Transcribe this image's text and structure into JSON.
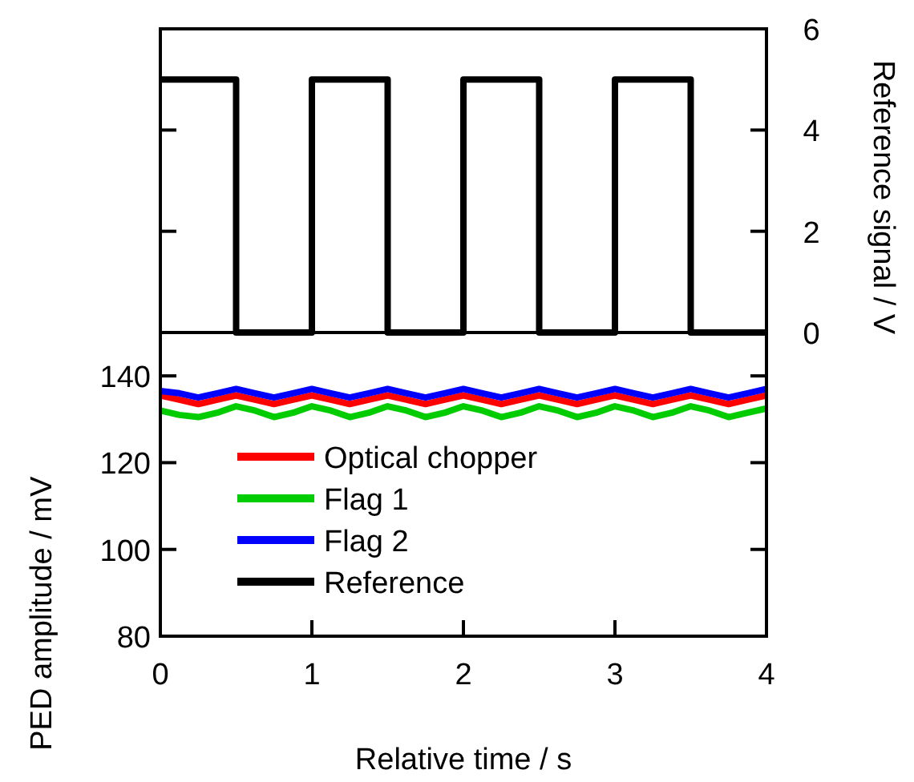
{
  "chart_data": {
    "type": "line",
    "xlabel": "Relative time / s",
    "ylabel": "PED amplitude / mV",
    "y2label": "Reference signal / V",
    "x": [
      0,
      0.125,
      0.25,
      0.375,
      0.5,
      0.625,
      0.75,
      0.875,
      1,
      1.125,
      1.25,
      1.375,
      1.5,
      1.625,
      1.75,
      1.875,
      2,
      2.125,
      2.25,
      2.375,
      2.5,
      2.625,
      2.75,
      2.875,
      3,
      3.125,
      3.25,
      3.375,
      3.5,
      3.625,
      3.75,
      3.875,
      4
    ],
    "xlim": [
      0,
      4
    ],
    "xticks": [
      0,
      1,
      2,
      3,
      4
    ],
    "ylim": [
      80,
      220
    ],
    "yticks": [
      80,
      100,
      120,
      140
    ],
    "y2lim": [
      -6,
      6
    ],
    "y2ticks": [
      0,
      2,
      4,
      6
    ],
    "legend": "bottom left",
    "grid": false,
    "ref_lines": [
      {
        "axis": "y2",
        "value": 0,
        "color": "#000000"
      }
    ],
    "series": [
      {
        "name": "Optical chopper",
        "color": "#ff0000",
        "values": [
          135.5,
          134.5,
          133.5,
          134.5,
          135.5,
          134.5,
          133.5,
          134.5,
          135.5,
          134.5,
          133.5,
          134.5,
          135.5,
          134.5,
          133.5,
          134.5,
          135.5,
          134.5,
          133.5,
          134.5,
          135.5,
          134.5,
          133.5,
          134.5,
          135.5,
          134.5,
          133.5,
          134.5,
          135.5,
          134.5,
          133.5,
          134.5,
          135.5
        ]
      },
      {
        "name": "Flag 1",
        "color": "#00cc00",
        "values": [
          132,
          131,
          130.5,
          131.5,
          133,
          132,
          130.5,
          131.5,
          133,
          132,
          130.5,
          131.5,
          133,
          132,
          130.5,
          131.5,
          133,
          132,
          130.5,
          131.5,
          133,
          132,
          130.5,
          131.5,
          133,
          132,
          130.5,
          131.5,
          133,
          132,
          130.5,
          131.5,
          132.5
        ]
      },
      {
        "name": "Flag 2",
        "color": "#0000ff",
        "values": [
          136.5,
          136,
          135,
          136,
          137,
          136,
          135,
          136,
          137,
          136,
          135,
          136,
          137,
          136,
          135,
          136,
          137,
          136,
          135,
          136,
          137,
          136,
          135,
          136,
          137,
          136,
          135,
          136,
          137,
          136,
          135,
          136,
          137
        ]
      },
      {
        "name": "Reference",
        "color": "#000000",
        "axis": "y2",
        "x": [
          0,
          0.5,
          0.5,
          1,
          1,
          1.5,
          1.5,
          2,
          2,
          2.5,
          2.5,
          3,
          3,
          3.5,
          3.5,
          4
        ],
        "values": [
          5,
          5,
          0,
          0,
          5,
          5,
          0,
          0,
          5,
          5,
          0,
          0,
          5,
          5,
          0,
          0
        ]
      }
    ]
  }
}
